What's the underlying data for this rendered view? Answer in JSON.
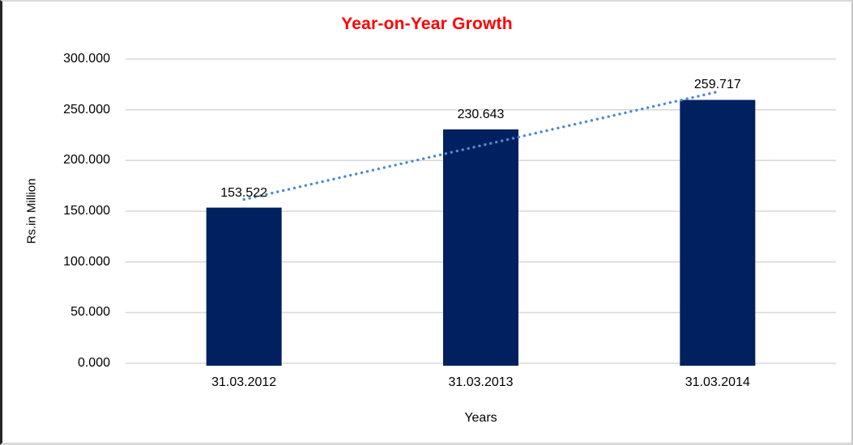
{
  "chart": {
    "title": "Year-on-Year Growth",
    "xlabel": "Years",
    "ylabel": "Rs.in Million"
  },
  "chart_data": {
    "type": "bar",
    "title": "Year-on-Year Growth",
    "xlabel": "Years",
    "ylabel": "Rs.in Million",
    "categories": [
      "31.03.2012",
      "31.03.2013",
      "31.03.2014"
    ],
    "values": [
      153.522,
      230.643,
      259.717
    ],
    "value_labels": [
      "153.522",
      "230.643",
      "259.717"
    ],
    "ylim": [
      0,
      300
    ],
    "yticks": [
      {
        "value": 0,
        "label": "0.000"
      },
      {
        "value": 50,
        "label": "50.000"
      },
      {
        "value": 100,
        "label": "100.000"
      },
      {
        "value": 150,
        "label": "150.000"
      },
      {
        "value": 200,
        "label": "200.000"
      },
      {
        "value": 250,
        "label": "250.000"
      },
      {
        "value": 300,
        "label": "300.000"
      }
    ],
    "grid": true,
    "legend": "none",
    "trendline": {
      "type": "linear",
      "style": "dotted"
    },
    "colors": {
      "bar": "#002060",
      "trendline": "#4e8ccb",
      "gridline": "#d9d9d9",
      "title": "#ff0000",
      "text": "#000000"
    }
  }
}
